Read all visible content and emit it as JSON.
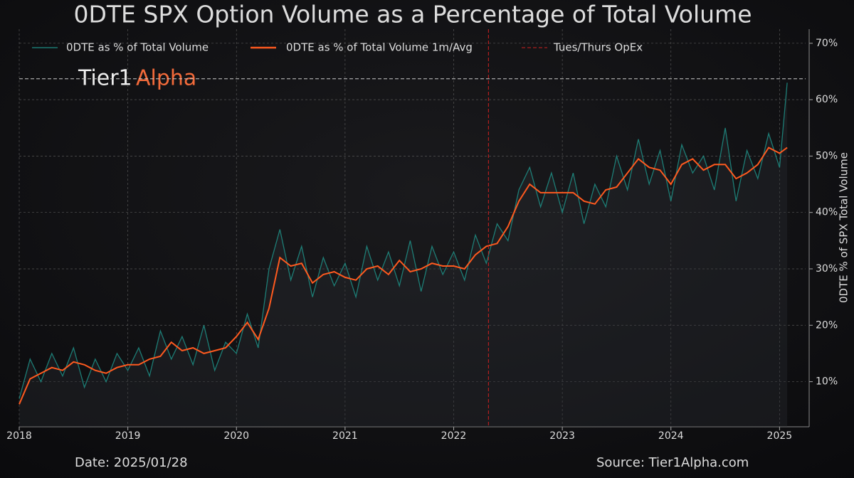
{
  "chart_data": {
    "type": "line",
    "title": "0DTE SPX Option Volume as a Percentage of Total Volume",
    "y_label": "0DTE % of SPX Total Volume",
    "watermark": [
      "Tier1",
      "Alpha"
    ],
    "date_note": "Date: 2025/01/28",
    "source": "Source: Tier1Alpha.com",
    "x": [
      2018.0,
      2018.1,
      2018.2,
      2018.3,
      2018.4,
      2018.5,
      2018.6,
      2018.7,
      2018.8,
      2018.9,
      2019.0,
      2019.1,
      2019.2,
      2019.3,
      2019.4,
      2019.5,
      2019.6,
      2019.7,
      2019.8,
      2019.9,
      2020.0,
      2020.1,
      2020.2,
      2020.3,
      2020.4,
      2020.5,
      2020.6,
      2020.7,
      2020.8,
      2020.9,
      2021.0,
      2021.1,
      2021.2,
      2021.3,
      2021.4,
      2021.5,
      2021.6,
      2021.7,
      2021.8,
      2021.9,
      2022.0,
      2022.1,
      2022.2,
      2022.3,
      2022.4,
      2022.5,
      2022.6,
      2022.7,
      2022.8,
      2022.9,
      2023.0,
      2023.1,
      2023.2,
      2023.3,
      2023.4,
      2023.5,
      2023.6,
      2023.7,
      2023.8,
      2023.9,
      2024.0,
      2024.1,
      2024.2,
      2024.3,
      2024.4,
      2024.5,
      2024.6,
      2024.7,
      2024.8,
      2024.9,
      2025.0,
      2025.07
    ],
    "series": [
      {
        "name": "0DTE as % of Total Volume",
        "color": "#1f8f86",
        "values": [
          7,
          14,
          10,
          15,
          11,
          16,
          9,
          14,
          10,
          15,
          12,
          16,
          11,
          19,
          14,
          18,
          13,
          20,
          12,
          17,
          15,
          22,
          16,
          30,
          37,
          28,
          34,
          25,
          32,
          27,
          31,
          25,
          34,
          28,
          33,
          27,
          35,
          26,
          34,
          29,
          33,
          28,
          36,
          31,
          38,
          35,
          44,
          48,
          41,
          47,
          40,
          47,
          38,
          45,
          41,
          50,
          44,
          53,
          45,
          51,
          42,
          52,
          47,
          50,
          44,
          55,
          42,
          51,
          46,
          54,
          48,
          63
        ]
      },
      {
        "name": "0DTE as % of Total Volume 1m/Avg",
        "color": "#ff5a1f",
        "values": [
          6,
          10.5,
          11.5,
          12.5,
          12,
          13.5,
          13,
          12,
          11.5,
          12.5,
          13,
          13,
          14,
          14.5,
          17,
          15.5,
          16,
          15,
          15.5,
          16,
          18,
          20.5,
          17.5,
          23,
          32,
          30.5,
          31,
          27.5,
          29,
          29.5,
          28.5,
          28,
          30,
          30.5,
          29,
          31.5,
          29.5,
          30,
          31,
          30.5,
          30.5,
          30,
          32.5,
          34,
          34.5,
          37.5,
          42,
          45,
          43.5,
          43.5,
          43.5,
          43.5,
          42,
          41.5,
          44,
          44.5,
          47,
          49.5,
          48,
          47.5,
          45,
          48.5,
          49.5,
          47.5,
          48.5,
          48.5,
          46,
          47,
          48.5,
          51.5,
          50.5,
          51.5
        ]
      }
    ],
    "vline": {
      "name": "Tues/Thurs OpEx",
      "x": 2022.32,
      "color": "#d02020"
    },
    "hline": {
      "y": 63.7,
      "color": "#cccccc"
    },
    "xlim": [
      2018,
      2025.24
    ],
    "xticks": [
      2018,
      2019,
      2020,
      2021,
      2022,
      2023,
      2024,
      2025
    ],
    "ylim": [
      2,
      72.5
    ],
    "yticks": [
      {
        "value": 10,
        "label": "10%"
      },
      {
        "value": 20,
        "label": "20%"
      },
      {
        "value": 30,
        "label": "30%"
      },
      {
        "value": 40,
        "label": "40%"
      },
      {
        "value": 50,
        "label": "50%"
      },
      {
        "value": 60,
        "label": "60%"
      },
      {
        "value": 70,
        "label": "70%"
      }
    ],
    "grid": true
  }
}
